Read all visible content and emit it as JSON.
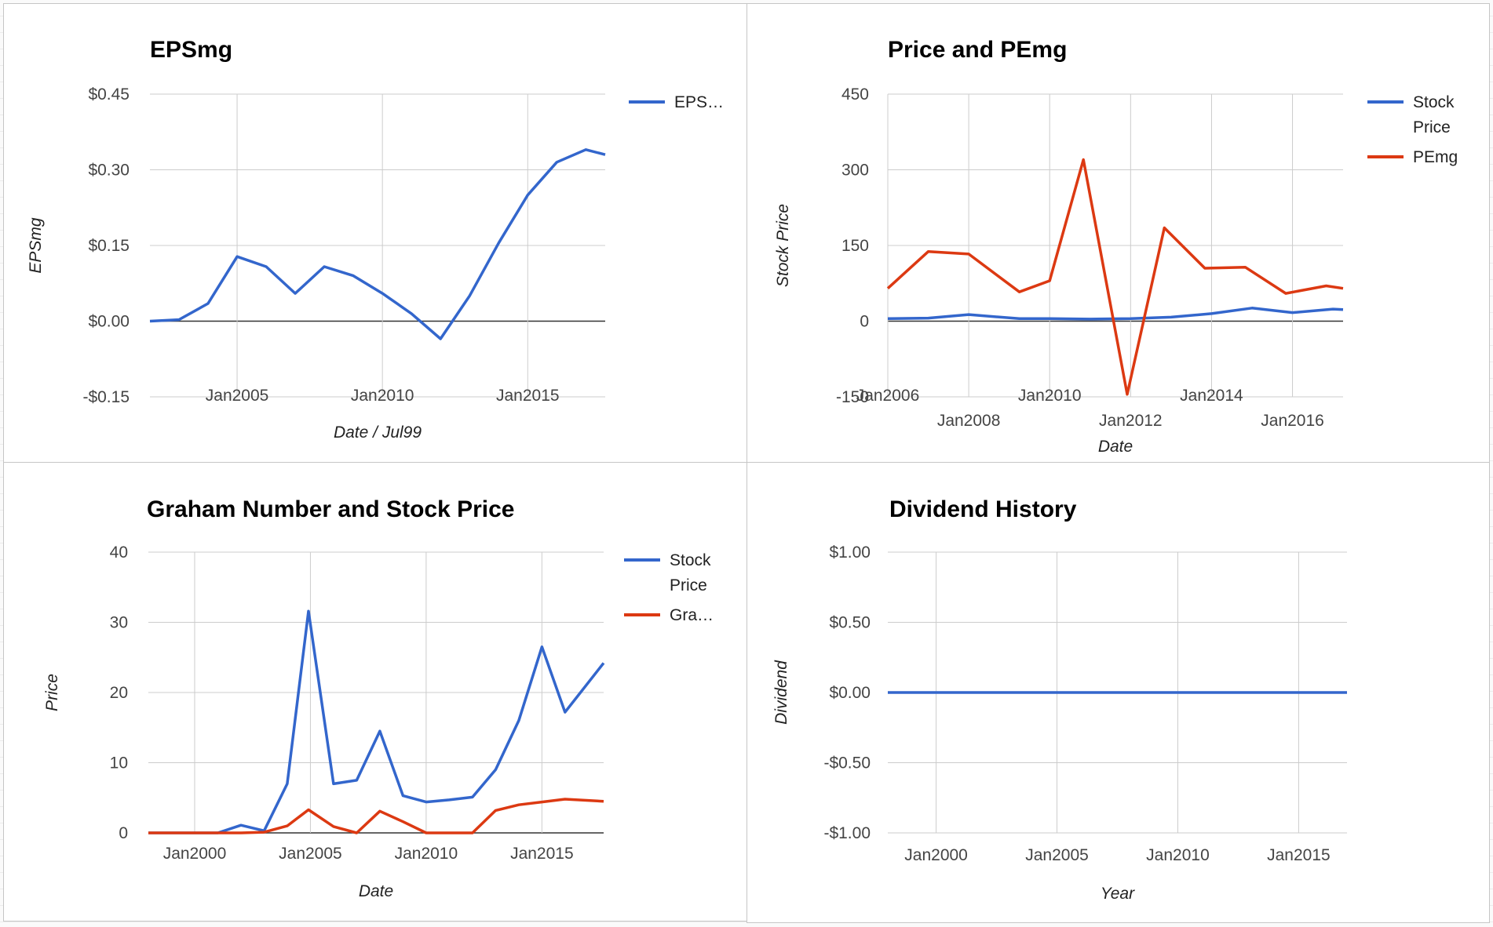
{
  "colors": {
    "blue": "#3366cc",
    "red": "#dc3912",
    "grid": "#cccccc",
    "zero": "#333333",
    "text": "#444444",
    "title": "#000000"
  },
  "chart_data": [
    {
      "id": "epsmg",
      "type": "line",
      "title": "EPSmg",
      "xlabel": "Date / Jul99",
      "ylabel": "EPSmg",
      "ylim": [
        -0.15,
        0.45
      ],
      "yticks": [
        -0.15,
        0.0,
        0.15,
        0.3,
        0.45
      ],
      "ytick_labels": [
        "-$0.15",
        "$0.00",
        "$0.15",
        "$0.30",
        "$0.45"
      ],
      "xlim": [
        "2002-01",
        "2017-09"
      ],
      "xticks": [
        "2005-01",
        "2010-01",
        "2015-01"
      ],
      "xtick_labels": [
        "Jan2005",
        "Jan2010",
        "Jan2015"
      ],
      "grid": true,
      "legend_position": "right",
      "series": [
        {
          "name": "EPS…",
          "color": "blue",
          "points": [
            [
              "2002-01",
              0.0
            ],
            [
              "2003-01",
              0.003
            ],
            [
              "2004-01",
              0.035
            ],
            [
              "2005-01",
              0.128
            ],
            [
              "2006-01",
              0.108
            ],
            [
              "2007-01",
              0.055
            ],
            [
              "2008-01",
              0.108
            ],
            [
              "2009-01",
              0.09
            ],
            [
              "2010-01",
              0.055
            ],
            [
              "2011-01",
              0.015
            ],
            [
              "2012-01",
              -0.035
            ],
            [
              "2013-01",
              0.05
            ],
            [
              "2014-01",
              0.155
            ],
            [
              "2015-01",
              0.25
            ],
            [
              "2016-01",
              0.315
            ],
            [
              "2017-01",
              0.34
            ],
            [
              "2017-09",
              0.33
            ]
          ]
        }
      ]
    },
    {
      "id": "price-pemg",
      "type": "line",
      "title": "Price and PEmg",
      "xlabel": "Date",
      "ylabel": "Stock Price",
      "ylim": [
        -150,
        450
      ],
      "yticks": [
        -150,
        0,
        150,
        300,
        450
      ],
      "ytick_labels": [
        "-150",
        "0",
        "150",
        "300",
        "450"
      ],
      "xlim": [
        "2006-01",
        "2017-04"
      ],
      "xticks": [
        "2006-01",
        "2008-01",
        "2010-01",
        "2012-01",
        "2014-01",
        "2016-01"
      ],
      "xtick_labels": [
        "Jan2006",
        "Jan2008",
        "Jan2010",
        "Jan2012",
        "Jan2014",
        "Jan2016"
      ],
      "grid": true,
      "legend_position": "right",
      "series": [
        {
          "name": "Stock Price",
          "color": "blue",
          "points": [
            [
              "2006-01",
              5
            ],
            [
              "2007-01",
              6
            ],
            [
              "2008-01",
              13
            ],
            [
              "2009-04",
              5
            ],
            [
              "2010-01",
              5
            ],
            [
              "2011-01",
              4
            ],
            [
              "2012-01",
              5
            ],
            [
              "2013-01",
              8
            ],
            [
              "2014-01",
              15
            ],
            [
              "2015-01",
              26
            ],
            [
              "2016-01",
              17
            ],
            [
              "2017-01",
              24
            ],
            [
              "2017-04",
              23
            ]
          ]
        },
        {
          "name": "PEmg",
          "color": "red",
          "points": [
            [
              "2006-01",
              65
            ],
            [
              "2007-01",
              138
            ],
            [
              "2008-01",
              133
            ],
            [
              "2009-04",
              58
            ],
            [
              "2010-01",
              80
            ],
            [
              "2010-11",
              320
            ],
            [
              "2011-12",
              -145
            ],
            [
              "2012-11",
              185
            ],
            [
              "2013-11",
              105
            ],
            [
              "2014-11",
              107
            ],
            [
              "2015-11",
              55
            ],
            [
              "2016-11",
              70
            ],
            [
              "2017-04",
              65
            ]
          ]
        }
      ]
    },
    {
      "id": "graham",
      "type": "line",
      "title": "Graham Number and Stock Price",
      "xlabel": "Date",
      "ylabel": "Price",
      "ylim": [
        0,
        40
      ],
      "yticks": [
        0,
        10,
        20,
        30,
        40
      ],
      "ytick_labels": [
        "0",
        "10",
        "20",
        "30",
        "40"
      ],
      "xlim": [
        "1998-01",
        "2017-09"
      ],
      "xticks": [
        "2000-01",
        "2005-01",
        "2010-01",
        "2015-01"
      ],
      "xtick_labels": [
        "Jan2000",
        "Jan2005",
        "Jan2010",
        "Jan2015"
      ],
      "grid": true,
      "legend_position": "right",
      "series": [
        {
          "name": "Stock Price",
          "color": "blue",
          "points": [
            [
              "1998-01",
              0
            ],
            [
              "2001-01",
              0
            ],
            [
              "2002-01",
              1.1
            ],
            [
              "2003-01",
              0.3
            ],
            [
              "2004-01",
              7
            ],
            [
              "2004-12",
              31.6
            ],
            [
              "2006-01",
              7
            ],
            [
              "2007-01",
              7.5
            ],
            [
              "2008-01",
              14.5
            ],
            [
              "2009-01",
              5.3
            ],
            [
              "2010-01",
              4.4
            ],
            [
              "2011-01",
              4.7
            ],
            [
              "2012-01",
              5.1
            ],
            [
              "2013-01",
              9
            ],
            [
              "2014-01",
              16
            ],
            [
              "2015-01",
              26.5
            ],
            [
              "2016-01",
              17.2
            ],
            [
              "2017-09",
              24.2
            ]
          ]
        },
        {
          "name": "Gra…",
          "color": "red",
          "points": [
            [
              "1998-01",
              0
            ],
            [
              "2002-01",
              0
            ],
            [
              "2003-01",
              0.1
            ],
            [
              "2004-01",
              1
            ],
            [
              "2004-12",
              3.3
            ],
            [
              "2006-01",
              0.9
            ],
            [
              "2007-01",
              0
            ],
            [
              "2008-01",
              3.1
            ],
            [
              "2009-01",
              1.6
            ],
            [
              "2010-01",
              0
            ],
            [
              "2012-01",
              0
            ],
            [
              "2013-01",
              3.2
            ],
            [
              "2014-01",
              4
            ],
            [
              "2015-01",
              4.4
            ],
            [
              "2016-01",
              4.8
            ],
            [
              "2017-09",
              4.5
            ]
          ]
        }
      ]
    },
    {
      "id": "dividend",
      "type": "line",
      "title": "Dividend History",
      "xlabel": "Year",
      "ylabel": "Dividend",
      "ylim": [
        -1.0,
        1.0
      ],
      "yticks": [
        -1.0,
        -0.5,
        0.0,
        0.5,
        1.0
      ],
      "ytick_labels": [
        "-$1.00",
        "-$0.50",
        "$0.00",
        "$0.50",
        "$1.00"
      ],
      "xlim": [
        "1998-01",
        "2017-01"
      ],
      "xticks": [
        "2000-01",
        "2005-01",
        "2010-01",
        "2015-01"
      ],
      "xtick_labels": [
        "Jan2000",
        "Jan2005",
        "Jan2010",
        "Jan2015"
      ],
      "grid": true,
      "legend_position": "none",
      "series": [
        {
          "color": "blue",
          "points": [
            [
              "1998-01",
              0
            ],
            [
              "2017-01",
              0
            ]
          ]
        }
      ]
    }
  ]
}
